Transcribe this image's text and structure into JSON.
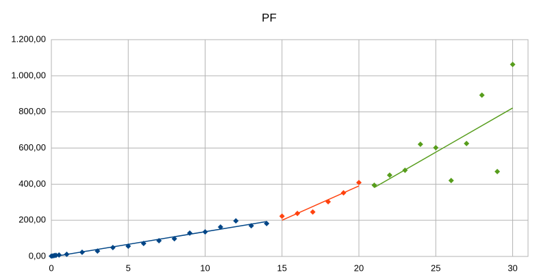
{
  "chart_data": {
    "type": "scatter",
    "title": "PF",
    "xlim": [
      0,
      31
    ],
    "xticks": [
      0,
      5,
      10,
      15,
      20,
      25,
      30
    ],
    "ylim": [
      0,
      1200
    ],
    "yticks": [
      {
        "value": 0,
        "label": "0,00"
      },
      {
        "value": 200,
        "label": "200,00"
      },
      {
        "value": 400,
        "label": "400,00"
      },
      {
        "value": 600,
        "label": "600,00"
      },
      {
        "value": 800,
        "label": "800,00"
      },
      {
        "value": 1000,
        "label": "1.000,00"
      },
      {
        "value": 1200,
        "label": "1.200,00"
      }
    ],
    "grid": true,
    "trendline": "linear",
    "series": [
      {
        "color": "#004586",
        "x": [
          0,
          0.1,
          0.2,
          0.3,
          0.5,
          1,
          2,
          3,
          4,
          5,
          6,
          7,
          8,
          9,
          10,
          11,
          12,
          13,
          14
        ],
        "values": [
          2,
          3,
          5,
          6,
          8,
          12,
          23,
          30,
          49,
          57,
          72,
          87,
          98,
          129,
          136,
          163,
          197,
          170,
          182
        ]
      },
      {
        "color": "#ff420e",
        "x": [
          15,
          16,
          17,
          18,
          19,
          20
        ],
        "values": [
          223,
          238,
          246,
          303,
          352,
          409
        ]
      },
      {
        "color": "#579d1c",
        "x": [
          21,
          22,
          23,
          24,
          25,
          26,
          27,
          28,
          29,
          30
        ],
        "values": [
          394,
          450,
          477,
          621,
          602,
          420,
          625,
          893,
          470,
          1063
        ]
      }
    ]
  }
}
